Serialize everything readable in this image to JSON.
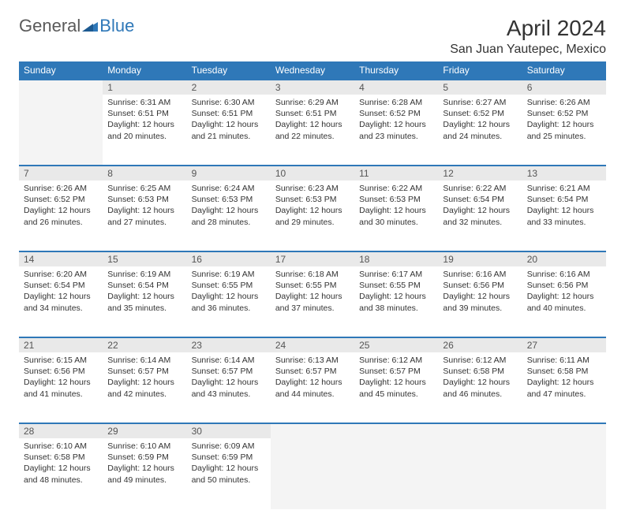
{
  "logo": {
    "text1": "General",
    "text2": "Blue"
  },
  "title": "April 2024",
  "location": "San Juan Yautepec, Mexico",
  "colors": {
    "header_bg": "#2f78b8",
    "header_text": "#ffffff",
    "daynum_bg": "#e9e9e9",
    "daynum_border": "#2f78b8",
    "empty_bg": "#f4f4f4",
    "text": "#333333",
    "logo_gray": "#5a5a5a",
    "logo_blue": "#2f78b8"
  },
  "dayHeaders": [
    "Sunday",
    "Monday",
    "Tuesday",
    "Wednesday",
    "Thursday",
    "Friday",
    "Saturday"
  ],
  "weeks": [
    [
      {
        "num": "",
        "lines": []
      },
      {
        "num": "1",
        "lines": [
          "Sunrise: 6:31 AM",
          "Sunset: 6:51 PM",
          "Daylight: 12 hours and 20 minutes."
        ]
      },
      {
        "num": "2",
        "lines": [
          "Sunrise: 6:30 AM",
          "Sunset: 6:51 PM",
          "Daylight: 12 hours and 21 minutes."
        ]
      },
      {
        "num": "3",
        "lines": [
          "Sunrise: 6:29 AM",
          "Sunset: 6:51 PM",
          "Daylight: 12 hours and 22 minutes."
        ]
      },
      {
        "num": "4",
        "lines": [
          "Sunrise: 6:28 AM",
          "Sunset: 6:52 PM",
          "Daylight: 12 hours and 23 minutes."
        ]
      },
      {
        "num": "5",
        "lines": [
          "Sunrise: 6:27 AM",
          "Sunset: 6:52 PM",
          "Daylight: 12 hours and 24 minutes."
        ]
      },
      {
        "num": "6",
        "lines": [
          "Sunrise: 6:26 AM",
          "Sunset: 6:52 PM",
          "Daylight: 12 hours and 25 minutes."
        ]
      }
    ],
    [
      {
        "num": "7",
        "lines": [
          "Sunrise: 6:26 AM",
          "Sunset: 6:52 PM",
          "Daylight: 12 hours and 26 minutes."
        ]
      },
      {
        "num": "8",
        "lines": [
          "Sunrise: 6:25 AM",
          "Sunset: 6:53 PM",
          "Daylight: 12 hours and 27 minutes."
        ]
      },
      {
        "num": "9",
        "lines": [
          "Sunrise: 6:24 AM",
          "Sunset: 6:53 PM",
          "Daylight: 12 hours and 28 minutes."
        ]
      },
      {
        "num": "10",
        "lines": [
          "Sunrise: 6:23 AM",
          "Sunset: 6:53 PM",
          "Daylight: 12 hours and 29 minutes."
        ]
      },
      {
        "num": "11",
        "lines": [
          "Sunrise: 6:22 AM",
          "Sunset: 6:53 PM",
          "Daylight: 12 hours and 30 minutes."
        ]
      },
      {
        "num": "12",
        "lines": [
          "Sunrise: 6:22 AM",
          "Sunset: 6:54 PM",
          "Daylight: 12 hours and 32 minutes."
        ]
      },
      {
        "num": "13",
        "lines": [
          "Sunrise: 6:21 AM",
          "Sunset: 6:54 PM",
          "Daylight: 12 hours and 33 minutes."
        ]
      }
    ],
    [
      {
        "num": "14",
        "lines": [
          "Sunrise: 6:20 AM",
          "Sunset: 6:54 PM",
          "Daylight: 12 hours and 34 minutes."
        ]
      },
      {
        "num": "15",
        "lines": [
          "Sunrise: 6:19 AM",
          "Sunset: 6:54 PM",
          "Daylight: 12 hours and 35 minutes."
        ]
      },
      {
        "num": "16",
        "lines": [
          "Sunrise: 6:19 AM",
          "Sunset: 6:55 PM",
          "Daylight: 12 hours and 36 minutes."
        ]
      },
      {
        "num": "17",
        "lines": [
          "Sunrise: 6:18 AM",
          "Sunset: 6:55 PM",
          "Daylight: 12 hours and 37 minutes."
        ]
      },
      {
        "num": "18",
        "lines": [
          "Sunrise: 6:17 AM",
          "Sunset: 6:55 PM",
          "Daylight: 12 hours and 38 minutes."
        ]
      },
      {
        "num": "19",
        "lines": [
          "Sunrise: 6:16 AM",
          "Sunset: 6:56 PM",
          "Daylight: 12 hours and 39 minutes."
        ]
      },
      {
        "num": "20",
        "lines": [
          "Sunrise: 6:16 AM",
          "Sunset: 6:56 PM",
          "Daylight: 12 hours and 40 minutes."
        ]
      }
    ],
    [
      {
        "num": "21",
        "lines": [
          "Sunrise: 6:15 AM",
          "Sunset: 6:56 PM",
          "Daylight: 12 hours and 41 minutes."
        ]
      },
      {
        "num": "22",
        "lines": [
          "Sunrise: 6:14 AM",
          "Sunset: 6:57 PM",
          "Daylight: 12 hours and 42 minutes."
        ]
      },
      {
        "num": "23",
        "lines": [
          "Sunrise: 6:14 AM",
          "Sunset: 6:57 PM",
          "Daylight: 12 hours and 43 minutes."
        ]
      },
      {
        "num": "24",
        "lines": [
          "Sunrise: 6:13 AM",
          "Sunset: 6:57 PM",
          "Daylight: 12 hours and 44 minutes."
        ]
      },
      {
        "num": "25",
        "lines": [
          "Sunrise: 6:12 AM",
          "Sunset: 6:57 PM",
          "Daylight: 12 hours and 45 minutes."
        ]
      },
      {
        "num": "26",
        "lines": [
          "Sunrise: 6:12 AM",
          "Sunset: 6:58 PM",
          "Daylight: 12 hours and 46 minutes."
        ]
      },
      {
        "num": "27",
        "lines": [
          "Sunrise: 6:11 AM",
          "Sunset: 6:58 PM",
          "Daylight: 12 hours and 47 minutes."
        ]
      }
    ],
    [
      {
        "num": "28",
        "lines": [
          "Sunrise: 6:10 AM",
          "Sunset: 6:58 PM",
          "Daylight: 12 hours and 48 minutes."
        ]
      },
      {
        "num": "29",
        "lines": [
          "Sunrise: 6:10 AM",
          "Sunset: 6:59 PM",
          "Daylight: 12 hours and 49 minutes."
        ]
      },
      {
        "num": "30",
        "lines": [
          "Sunrise: 6:09 AM",
          "Sunset: 6:59 PM",
          "Daylight: 12 hours and 50 minutes."
        ]
      },
      {
        "num": "",
        "lines": []
      },
      {
        "num": "",
        "lines": []
      },
      {
        "num": "",
        "lines": []
      },
      {
        "num": "",
        "lines": []
      }
    ]
  ]
}
